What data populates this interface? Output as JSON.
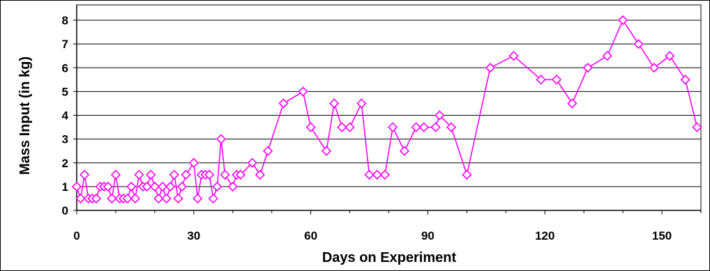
{
  "chart_data": {
    "type": "line",
    "title": "",
    "xlabel": "Days on Experiment",
    "ylabel": "Mass Input (in kg)",
    "xlim": [
      0,
      160
    ],
    "ylim": [
      0,
      8
    ],
    "xticks": [
      0,
      30,
      60,
      90,
      120,
      150
    ],
    "yticks": [
      0,
      1,
      2,
      3,
      4,
      5,
      6,
      7,
      8
    ],
    "grid": "horizontal",
    "legend": "none",
    "series": [
      {
        "color": "#ff00ff",
        "marker": "diamond-open",
        "points": [
          [
            0,
            1
          ],
          [
            1,
            0.5
          ],
          [
            2,
            1.5
          ],
          [
            3,
            0.5
          ],
          [
            4,
            0.5
          ],
          [
            5,
            0.5
          ],
          [
            6,
            1
          ],
          [
            7,
            1
          ],
          [
            8,
            1
          ],
          [
            9,
            0.5
          ],
          [
            10,
            1.5
          ],
          [
            11,
            0.5
          ],
          [
            12,
            0.5
          ],
          [
            13,
            0.5
          ],
          [
            14,
            1
          ],
          [
            15,
            0.5
          ],
          [
            16,
            1.5
          ],
          [
            17,
            1
          ],
          [
            18,
            1
          ],
          [
            19,
            1.5
          ],
          [
            20,
            1
          ],
          [
            21,
            0.5
          ],
          [
            22,
            1
          ],
          [
            23,
            0.5
          ],
          [
            24,
            1
          ],
          [
            25,
            1.5
          ],
          [
            26,
            0.5
          ],
          [
            27,
            1
          ],
          [
            28,
            1.5
          ],
          [
            30,
            2
          ],
          [
            31,
            0.5
          ],
          [
            32,
            1.5
          ],
          [
            33,
            1.5
          ],
          [
            34,
            1.5
          ],
          [
            35,
            0.5
          ],
          [
            36,
            1
          ],
          [
            37,
            3
          ],
          [
            38,
            1.5
          ],
          [
            40,
            1
          ],
          [
            41,
            1.5
          ],
          [
            42,
            1.5
          ],
          [
            45,
            2
          ],
          [
            47,
            1.5
          ],
          [
            49,
            2.5
          ],
          [
            53,
            4.5
          ],
          [
            58,
            5
          ],
          [
            60,
            3.5
          ],
          [
            64,
            2.5
          ],
          [
            66,
            4.5
          ],
          [
            68,
            3.5
          ],
          [
            70,
            3.5
          ],
          [
            73,
            4.5
          ],
          [
            75,
            1.5
          ],
          [
            77,
            1.5
          ],
          [
            79,
            1.5
          ],
          [
            81,
            3.5
          ],
          [
            84,
            2.5
          ],
          [
            87,
            3.5
          ],
          [
            89,
            3.5
          ],
          [
            92,
            3.5
          ],
          [
            93,
            4
          ],
          [
            96,
            3.5
          ],
          [
            100,
            1.5
          ],
          [
            106,
            6
          ],
          [
            112,
            6.5
          ],
          [
            119,
            5.5
          ],
          [
            123,
            5.5
          ],
          [
            127,
            4.5
          ],
          [
            131,
            6
          ],
          [
            136,
            6.5
          ],
          [
            140,
            8
          ],
          [
            144,
            7
          ],
          [
            148,
            6
          ],
          [
            152,
            6.5
          ],
          [
            156,
            5.5
          ],
          [
            159,
            3.5
          ]
        ]
      }
    ]
  }
}
